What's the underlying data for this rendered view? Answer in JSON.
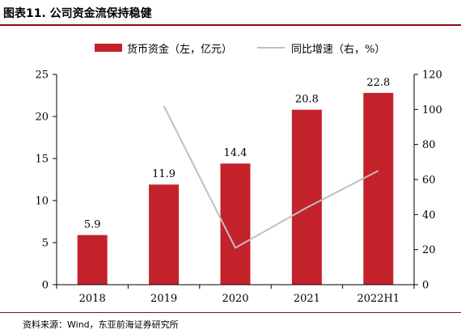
{
  "header": {
    "title": "图表11. 公司资金流保持稳健"
  },
  "footer": {
    "source": "资料来源：Wind，东亚前海证券研究所"
  },
  "colors": {
    "bar": "#c4222b",
    "line": "#bfbfbf",
    "rule": "#8c0d1a"
  },
  "chart_data": {
    "type": "bar",
    "title": "",
    "xlabel": "",
    "ylabel": "",
    "categories": [
      "2018",
      "2019",
      "2020",
      "2021",
      "2022H1"
    ],
    "series": [
      {
        "name": "货币资金（左，亿元）",
        "type": "bar",
        "axis": "left",
        "values": [
          5.9,
          11.9,
          14.4,
          20.8,
          22.8
        ],
        "labels": [
          "5.9",
          "11.9",
          "14.4",
          "20.8",
          "22.8"
        ]
      },
      {
        "name": "同比增速（右，%）",
        "type": "line",
        "axis": "right",
        "values": [
          null,
          102,
          21,
          44,
          65
        ]
      }
    ],
    "ylim_left": [
      0,
      25
    ],
    "yticks_left": [
      "0",
      "5",
      "10",
      "15",
      "20",
      "25"
    ],
    "ylim_right": [
      0,
      120
    ],
    "yticks_right": [
      "0",
      "20",
      "40",
      "60",
      "80",
      "100",
      "120"
    ],
    "legend_position": "top-center",
    "grid": false
  }
}
